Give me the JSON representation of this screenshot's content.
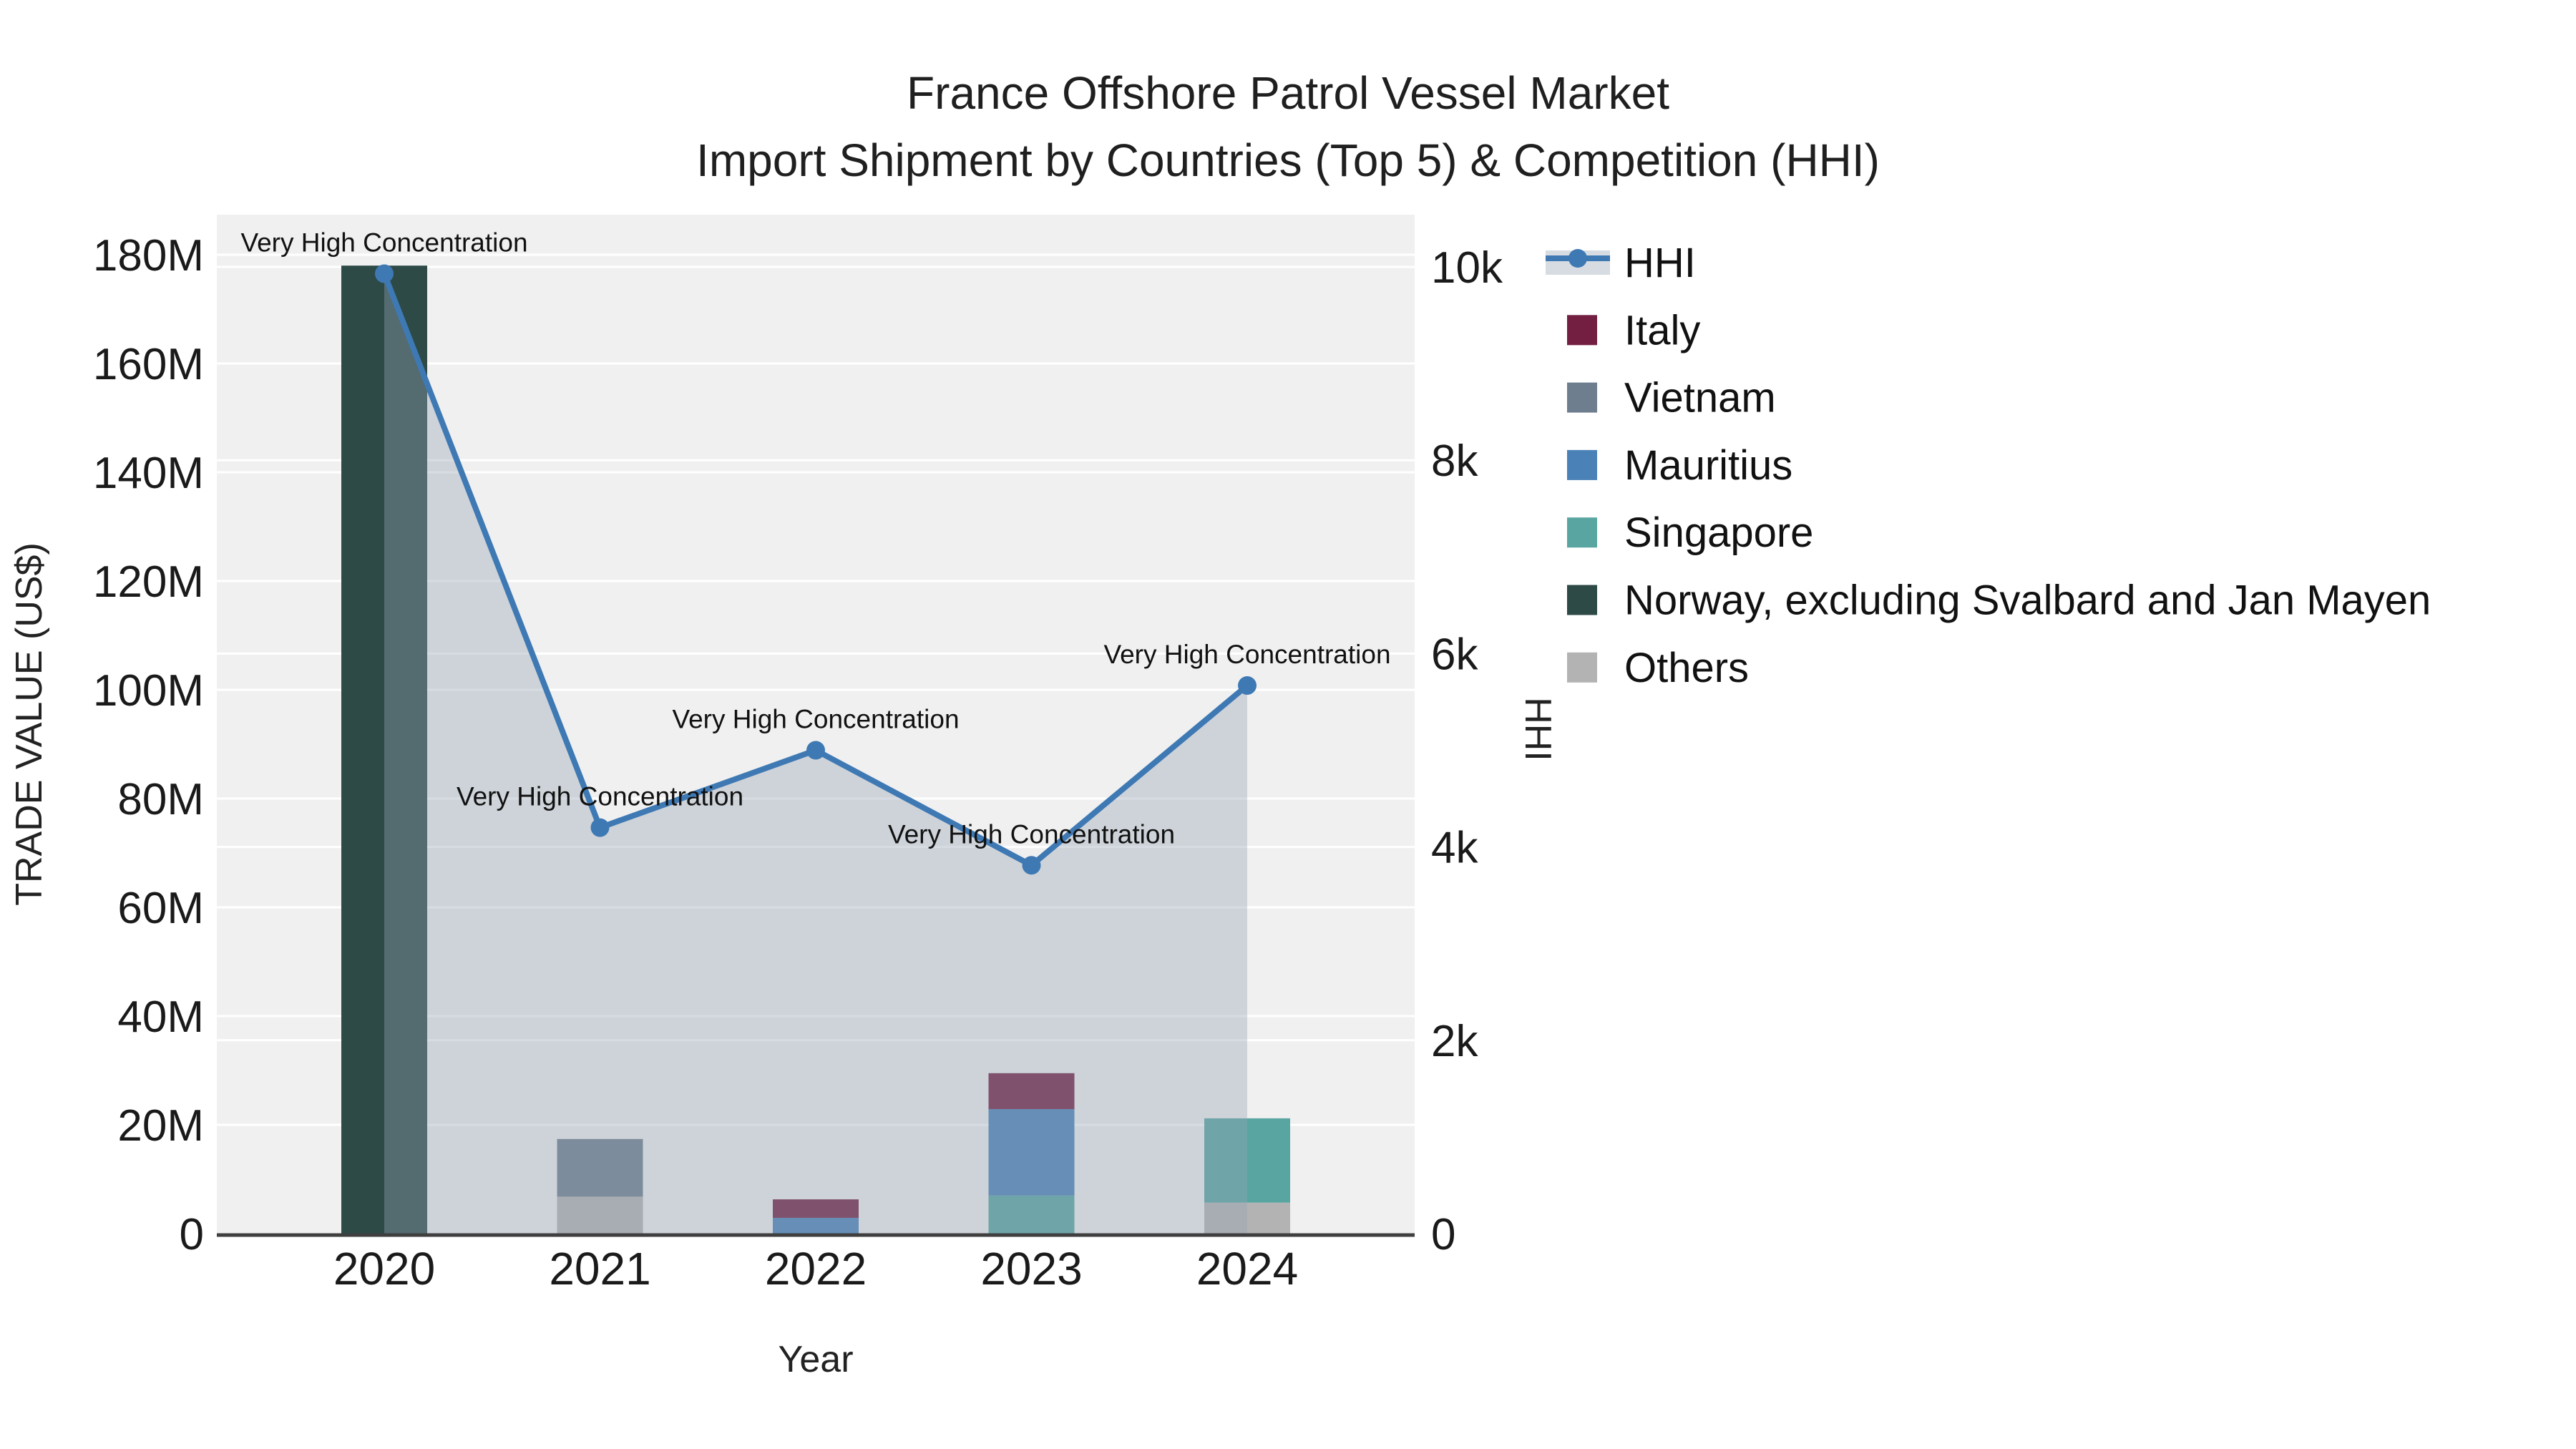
{
  "figure": {
    "background": "#ffffff",
    "plot_background": "#f0f0f0",
    "gridline_color": "#ffffff",
    "axis_line_color": "#3f3f3f",
    "title_line1": "France Offshore Patrol Vessel Market",
    "title_line2": "Import Shipment by Countries (Top 5) & Competition (HHI)"
  },
  "chart_data": {
    "type": "bar+line",
    "title": "France Offshore Patrol Vessel Market",
    "subtitle": "Import Shipment by Countries (Top 5) & Competition (HHI)",
    "categories": [
      "2020",
      "2021",
      "2022",
      "2023",
      "2024"
    ],
    "xlabel": "Year",
    "y_left": {
      "title": "TRADE VALUE (US$)",
      "unit": "million USD",
      "max": 180,
      "ticks": [
        {
          "v": 0,
          "label": "0"
        },
        {
          "v": 20,
          "label": "20M"
        },
        {
          "v": 40,
          "label": "40M"
        },
        {
          "v": 60,
          "label": "60M"
        },
        {
          "v": 80,
          "label": "80M"
        },
        {
          "v": 100,
          "label": "100M"
        },
        {
          "v": 120,
          "label": "120M"
        },
        {
          "v": 140,
          "label": "140M"
        },
        {
          "v": 160,
          "label": "160M"
        },
        {
          "v": 180,
          "label": "180M"
        }
      ]
    },
    "y_right": {
      "title": "HHI",
      "max": 10000,
      "ticks": [
        {
          "v": 0,
          "label": "0"
        },
        {
          "v": 2000,
          "label": "2k"
        },
        {
          "v": 4000,
          "label": "4k"
        },
        {
          "v": 6000,
          "label": "6k"
        },
        {
          "v": 8000,
          "label": "8k"
        },
        {
          "v": 10000,
          "label": "10k"
        }
      ]
    },
    "series": [
      {
        "name": "Italy",
        "color": "#731f42",
        "values": [
          0,
          0,
          3.4,
          6.6,
          0
        ]
      },
      {
        "name": "Vietnam",
        "color": "#6e7e8e",
        "values": [
          0,
          10.6,
          0,
          0,
          0
        ]
      },
      {
        "name": "Mauritius",
        "color": "#4a82b8",
        "values": [
          0,
          0,
          2.9,
          15.9,
          0
        ]
      },
      {
        "name": "Singapore",
        "color": "#58a5a2",
        "values": [
          0,
          0,
          0,
          7,
          15.5
        ]
      },
      {
        "name": "Norway, excluding Svalbard and Jan Mayen",
        "color": "#2d4a47",
        "values": [
          178,
          0,
          0,
          0,
          0
        ]
      },
      {
        "name": "Others",
        "color": "#b3b3b3",
        "values": [
          0,
          6.8,
          0,
          0,
          5.7
        ]
      }
    ],
    "stack_order_bottom_to_top": [
      "Others",
      "Norway, excluding Svalbard and Jan Mayen",
      "Singapore",
      "Mauritius",
      "Vietnam",
      "Italy"
    ],
    "hhi_line": {
      "name": "HHI",
      "color": "#3e79b4",
      "area_fill": "rgba(150,163,180,0.38)",
      "legend_band_fill": "#d7dce2",
      "values": [
        9930,
        4200,
        5000,
        3810,
        5670
      ]
    },
    "annotations": [
      {
        "category": "2020",
        "text": "Very High Concentration"
      },
      {
        "category": "2021",
        "text": "Very High Concentration"
      },
      {
        "category": "2022",
        "text": "Very High Concentration"
      },
      {
        "category": "2023",
        "text": "Very High Concentration"
      },
      {
        "category": "2024",
        "text": "Very High Concentration"
      }
    ],
    "legend": {
      "position": "right",
      "entries": [
        {
          "name": "HHI",
          "type": "line",
          "color": "#3e79b4"
        },
        {
          "name": "Italy",
          "type": "swatch",
          "color": "#731f42"
        },
        {
          "name": "Vietnam",
          "type": "swatch",
          "color": "#6e7e8e"
        },
        {
          "name": "Mauritius",
          "type": "swatch",
          "color": "#4a82b8"
        },
        {
          "name": "Singapore",
          "type": "swatch",
          "color": "#58a5a2"
        },
        {
          "name": "Norway, excluding Svalbard and Jan Mayen",
          "type": "swatch",
          "color": "#2d4a47"
        },
        {
          "name": "Others",
          "type": "swatch",
          "color": "#b3b3b3"
        }
      ]
    },
    "grid": true
  }
}
